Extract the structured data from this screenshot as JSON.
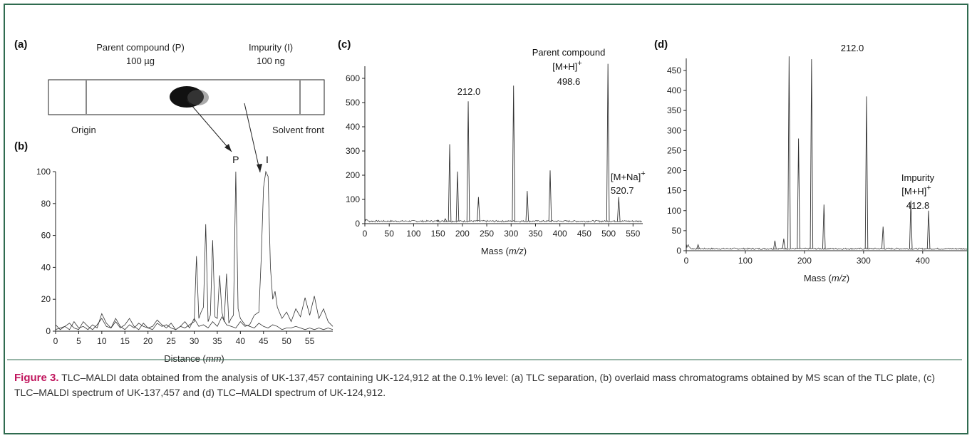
{
  "panel_labels": {
    "a": "(a)",
    "b": "(b)",
    "c": "(c)",
    "d": "(d)"
  },
  "tlc": {
    "parent_label": "Parent compound (P)",
    "parent_amount": "100 µg",
    "impurity_label": "Impurity (I)",
    "impurity_amount": "100 ng",
    "origin_label": "Origin",
    "front_label": "Solvent front"
  },
  "caption": {
    "lead": "Figure 3.",
    "text": " TLC–MALDI data obtained from the analysis of UK-137,457 containing UK-124,912 at the 0.1% level: (a) TLC separation, (b) overlaid mass chromatograms obtained by MS scan of the TLC plate, (c) TLC–MALDI spectrum of UK-137,457 and (d) TLC–MALDI spectrum of UK-124,912."
  },
  "colors": {
    "frame": "#2f6b4f",
    "caption_lead": "#c0145c",
    "trace": "#333333"
  },
  "chart_data": [
    {
      "id": "b",
      "type": "line",
      "xlabel": "Distance (mm)",
      "ylabel": "",
      "xlim": [
        0,
        60
      ],
      "ylim": [
        0,
        100
      ],
      "xticks": [
        0,
        5,
        10,
        15,
        20,
        25,
        30,
        35,
        40,
        45,
        50,
        55
      ],
      "yticks": [
        0,
        20,
        40,
        60,
        80,
        100
      ],
      "grid": false,
      "annotations": [
        {
          "text": "P",
          "x": 39,
          "y": 100
        },
        {
          "text": "I",
          "x": 45.8,
          "y": 100
        }
      ],
      "series": [
        {
          "x": [
            0,
            1,
            2,
            3,
            4,
            5,
            6,
            7,
            8,
            9,
            10,
            11,
            12,
            13,
            14,
            15,
            16,
            17,
            18,
            19,
            20,
            21,
            22,
            23,
            24,
            25,
            26,
            27,
            28,
            29,
            30,
            30.5,
            31,
            31.5,
            32,
            32.5,
            33,
            33.5,
            34,
            34.5,
            35,
            35.5,
            36,
            36.5,
            37,
            37.5,
            38,
            38.5,
            39,
            39.5,
            40,
            41,
            42,
            43,
            44,
            45,
            46,
            47,
            48,
            49,
            50,
            51,
            52,
            53,
            54,
            55,
            56,
            57,
            58,
            59,
            60
          ],
          "y": [
            1,
            2,
            3,
            1,
            6,
            2,
            3,
            1,
            4,
            2,
            11,
            5,
            2,
            8,
            3,
            1,
            4,
            2,
            5,
            3,
            2,
            1,
            5,
            3,
            4,
            2,
            1,
            3,
            2,
            4,
            6,
            47,
            8,
            12,
            15,
            67,
            6,
            10,
            57,
            9,
            8,
            35,
            12,
            6,
            36,
            5,
            8,
            10,
            100,
            14,
            8,
            4,
            3,
            2,
            5,
            3,
            2,
            4,
            3,
            1,
            2,
            2,
            3,
            2,
            1,
            2,
            1,
            2,
            1,
            2,
            1
          ]
        },
        {
          "x": [
            0,
            1,
            2,
            3,
            4,
            5,
            6,
            7,
            8,
            9,
            10,
            11,
            12,
            13,
            14,
            15,
            16,
            17,
            18,
            19,
            20,
            21,
            22,
            23,
            24,
            25,
            26,
            27,
            28,
            29,
            30,
            31,
            32,
            33,
            34,
            35,
            36,
            37,
            38,
            39,
            40,
            41,
            42,
            43,
            44,
            44.5,
            45,
            45.5,
            46,
            46.5,
            47,
            47.5,
            48,
            49,
            50,
            51,
            52,
            53,
            54,
            55,
            56,
            57,
            58,
            59,
            60
          ],
          "y": [
            4,
            1,
            3,
            5,
            2,
            1,
            6,
            3,
            1,
            4,
            8,
            3,
            2,
            6,
            2,
            4,
            8,
            3,
            1,
            5,
            2,
            3,
            7,
            4,
            2,
            5,
            1,
            3,
            6,
            2,
            8,
            3,
            4,
            2,
            6,
            3,
            9,
            4,
            3,
            2,
            6,
            3,
            4,
            10,
            12,
            45,
            90,
            100,
            97,
            40,
            20,
            25,
            15,
            8,
            12,
            6,
            14,
            9,
            21,
            10,
            22,
            8,
            14,
            6,
            3
          ]
        }
      ]
    },
    {
      "id": "c",
      "type": "line",
      "xlabel": "Mass (m/z)",
      "ylabel": "",
      "xlim": [
        0,
        570
      ],
      "ylim": [
        0,
        650
      ],
      "xticks": [
        0,
        50,
        100,
        150,
        200,
        250,
        300,
        350,
        400,
        450,
        500,
        550
      ],
      "yticks": [
        0,
        100,
        200,
        300,
        400,
        500,
        600
      ],
      "grid": false,
      "annotations": [
        {
          "text": "212.0",
          "x": 212,
          "y": 505
        },
        {
          "text": "Parent compound",
          "x": 498.6,
          "y": 660
        },
        {
          "text": "[M+H]+",
          "x": 498.6,
          "y": 660
        },
        {
          "text": "498.6",
          "x": 498.6,
          "y": 660
        },
        {
          "text": "[M+Na]+",
          "x": 520.7,
          "y": 110
        },
        {
          "text": "520.7",
          "x": 520.7,
          "y": 110
        }
      ],
      "peaks": [
        [
          150,
          15
        ],
        [
          165,
          20
        ],
        [
          174,
          328
        ],
        [
          190,
          215
        ],
        [
          212,
          505
        ],
        [
          233,
          110
        ],
        [
          305,
          570
        ],
        [
          333,
          135
        ],
        [
          380,
          220
        ],
        [
          498.6,
          660
        ],
        [
          520.7,
          110
        ]
      ],
      "baseline": 10
    },
    {
      "id": "d",
      "type": "line",
      "xlabel": "Mass (m/z)",
      "ylabel": "",
      "xlim": [
        0,
        475
      ],
      "ylim": [
        0,
        480
      ],
      "xticks": [
        0,
        100,
        200,
        300,
        400
      ],
      "yticks": [
        0,
        50,
        100,
        150,
        200,
        250,
        300,
        350,
        400,
        450
      ],
      "grid": false,
      "annotations": [
        {
          "text": "212.0",
          "x": 212,
          "y": 478
        },
        {
          "text": "Impurity",
          "x": 412.8,
          "y": 130
        },
        {
          "text": "[M+H]+",
          "x": 412.8,
          "y": 130
        },
        {
          "text": "412.8",
          "x": 412.8,
          "y": 130
        }
      ],
      "peaks": [
        [
          20,
          15
        ],
        [
          150,
          25
        ],
        [
          165,
          30
        ],
        [
          174,
          485
        ],
        [
          190,
          280
        ],
        [
          212,
          478
        ],
        [
          233,
          115
        ],
        [
          305,
          385
        ],
        [
          333,
          60
        ],
        [
          380,
          125
        ],
        [
          410,
          100
        ]
      ],
      "baseline": 5
    }
  ]
}
